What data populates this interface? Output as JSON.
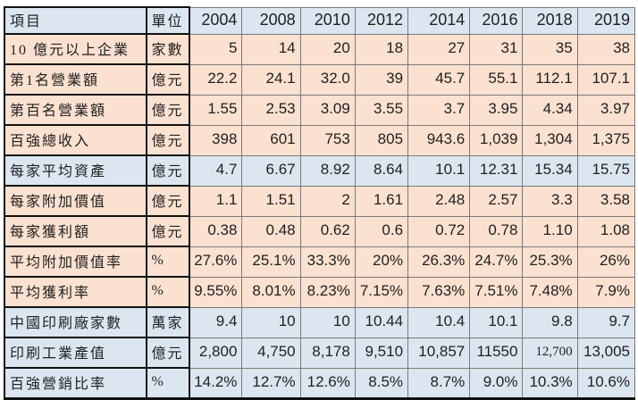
{
  "table": {
    "header": {
      "item": "項目",
      "unit": "單位",
      "years": [
        "2004",
        "2008",
        "2010",
        "2012",
        "2014",
        "2016",
        "2018",
        "2019"
      ]
    },
    "rows": [
      {
        "item": "10 億元以上企業",
        "unit": "家數",
        "theme": "peach",
        "values": [
          "5",
          "14",
          "20",
          "18",
          "27",
          "31",
          "35",
          "38"
        ]
      },
      {
        "item": "第1名營業額",
        "unit": "億元",
        "theme": "peach",
        "values": [
          "22.2",
          "24.1",
          "32.0",
          "39",
          "45.7",
          "55.1",
          "112.1",
          "107.1"
        ]
      },
      {
        "item": "第百名營業額",
        "unit": "億元",
        "theme": "peach",
        "values": [
          "1.55",
          "2.53",
          "3.09",
          "3.55",
          "3.7",
          "3.95",
          "4.34",
          "3.97"
        ]
      },
      {
        "item": "百強總收入",
        "unit": "億元",
        "theme": "peach",
        "values": [
          "398",
          "601",
          "753",
          "805",
          "943.6",
          "1,039",
          "1,304",
          "1,375"
        ]
      },
      {
        "item": "每家平均資產",
        "unit": "億元",
        "theme": "blue",
        "values": [
          "4.7",
          "6.67",
          "8.92",
          "8.64",
          "10.1",
          "12.31",
          "15.34",
          "15.75"
        ]
      },
      {
        "item": "每家附加價值",
        "unit": "億元",
        "theme": "peach",
        "values": [
          "1.1",
          "1.51",
          "2",
          "1.61",
          "2.48",
          "2.57",
          "3.3",
          "3.58"
        ]
      },
      {
        "item": "每家獲利額",
        "unit": "億元",
        "theme": "peach",
        "values": [
          "0.38",
          "0.48",
          "0.62",
          "0.6",
          "0.72",
          "0.78",
          "1.10",
          "1.08"
        ]
      },
      {
        "item": "平均附加價值率",
        "unit": "%",
        "theme": "peach",
        "values": [
          "27.6%",
          "25.1%",
          "33.3%",
          "20%",
          "26.3%",
          "24.7%",
          "25.3%",
          "26%"
        ]
      },
      {
        "item": "平均獲利率",
        "unit": "%",
        "theme": "peach",
        "values": [
          "9.55%",
          "8.01%",
          "8.23%",
          "7.15%",
          "7.63%",
          "7.51%",
          "7.48%",
          "7.9%"
        ]
      },
      {
        "item": "中國印刷廠家數",
        "unit": "萬家",
        "theme": "blue",
        "values": [
          "9.4",
          "10",
          "10",
          "10.44",
          "10.4",
          "10.1",
          "9.8",
          "9.7"
        ]
      },
      {
        "item": "印刷工業產值",
        "unit": "億元",
        "theme": "blue",
        "values": [
          "2,800",
          "4,750",
          "8,178",
          "9,510",
          "10,857",
          "11550",
          "12,700",
          "13,005"
        ]
      },
      {
        "item": "百強營銷比率",
        "unit": "%",
        "theme": "blue",
        "values": [
          "14.2%",
          "12.7%",
          "12.6%",
          "8.5%",
          "8.7%",
          "9.0%",
          "10.3%",
          "10.6%"
        ]
      }
    ],
    "colors": {
      "header_fill": "#dce6f1",
      "blue_fill": "#dce6f1",
      "peach_fill": "#fbe1d0",
      "grid_line": "#7a7a7a",
      "frame_line": "#111111",
      "text": "#1f1f1f"
    }
  }
}
